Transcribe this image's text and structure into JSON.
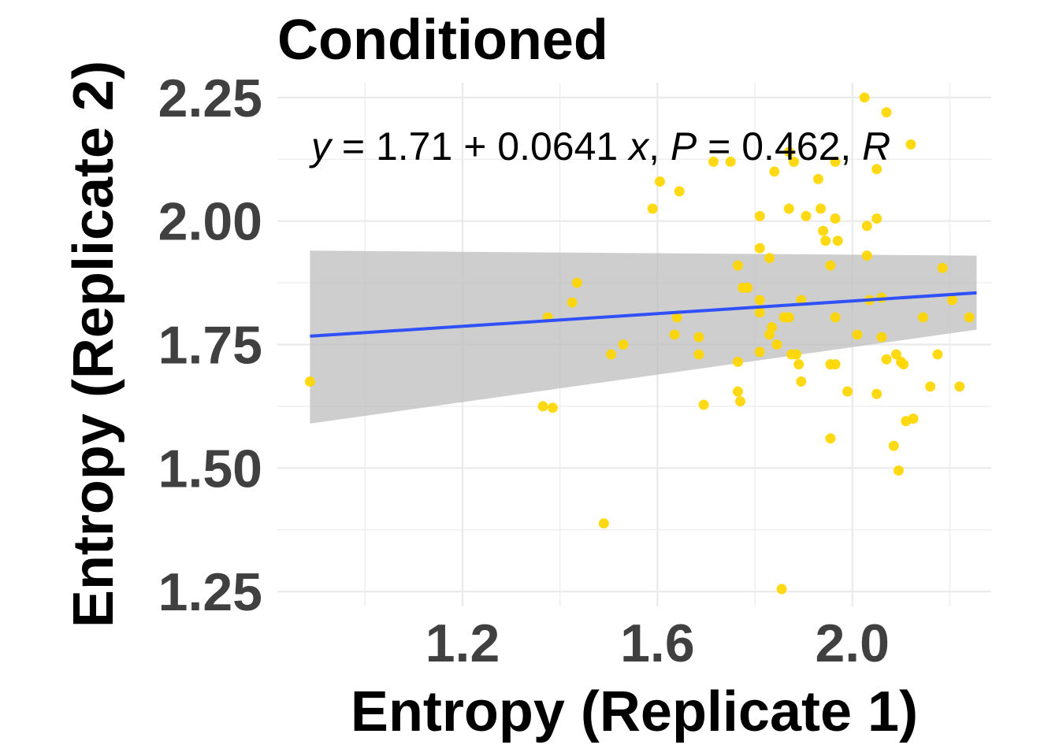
{
  "chart_data": {
    "type": "scatter",
    "title": "Conditioned",
    "xlabel": "Entropy (Replicate 1)",
    "ylabel": "Entropy (Replicate 2)",
    "xlim": [
      0.82,
      2.285
    ],
    "ylim": [
      1.22,
      2.28
    ],
    "x_ticks": [
      {
        "value": 1.2,
        "label": "1.2"
      },
      {
        "value": 1.6,
        "label": "1.6"
      },
      {
        "value": 2.0,
        "label": "2.0"
      }
    ],
    "y_ticks": [
      {
        "value": 1.25,
        "label": "1.25"
      },
      {
        "value": 1.5,
        "label": "1.50"
      },
      {
        "value": 1.75,
        "label": "1.75"
      },
      {
        "value": 2.0,
        "label": "2.00"
      },
      {
        "value": 2.25,
        "label": "2.25"
      }
    ],
    "grid": true,
    "colors": {
      "points": "#FFD700",
      "line": "#3050F8",
      "band": "#BEBEBE",
      "grid": "#EBEBEB"
    },
    "regression": {
      "intercept": 1.71,
      "slope": 0.0641,
      "equation_parts": [
        {
          "text": "y",
          "italic": true
        },
        {
          "text": " = 1.71 + 0.0641 ",
          "italic": false
        },
        {
          "text": "x",
          "italic": true
        },
        {
          "text": ", ",
          "italic": false
        },
        {
          "text": "P",
          "italic": true
        },
        {
          "text": " = 0.462, ",
          "italic": false
        },
        {
          "text": "R",
          "italic": true
        }
      ]
    },
    "confidence_band": {
      "x": [
        0.887,
        2.255
      ],
      "upper": [
        1.94,
        1.93
      ],
      "lower": [
        1.59,
        1.78
      ]
    },
    "points": [
      [
        0.887,
        1.675
      ],
      [
        1.365,
        1.625
      ],
      [
        1.375,
        1.805
      ],
      [
        1.385,
        1.622
      ],
      [
        1.425,
        1.835
      ],
      [
        1.435,
        1.875
      ],
      [
        1.49,
        1.388
      ],
      [
        1.505,
        1.73
      ],
      [
        1.53,
        1.75
      ],
      [
        1.59,
        2.025
      ],
      [
        1.605,
        2.08
      ],
      [
        1.635,
        1.77
      ],
      [
        1.64,
        1.805
      ],
      [
        1.645,
        2.06
      ],
      [
        1.685,
        1.765
      ],
      [
        1.685,
        1.73
      ],
      [
        1.695,
        1.628
      ],
      [
        1.715,
        2.12
      ],
      [
        1.75,
        2.12
      ],
      [
        1.765,
        1.715
      ],
      [
        1.765,
        1.655
      ],
      [
        1.765,
        1.91
      ],
      [
        1.77,
        1.635
      ],
      [
        1.775,
        1.865
      ],
      [
        1.785,
        1.865
      ],
      [
        1.81,
        1.945
      ],
      [
        1.81,
        1.84
      ],
      [
        1.81,
        1.815
      ],
      [
        1.81,
        1.735
      ],
      [
        1.81,
        2.01
      ],
      [
        1.83,
        1.77
      ],
      [
        1.83,
        1.925
      ],
      [
        1.835,
        1.785
      ],
      [
        1.84,
        2.1
      ],
      [
        1.845,
        1.75
      ],
      [
        1.855,
        1.255
      ],
      [
        1.86,
        1.805
      ],
      [
        1.87,
        2.14
      ],
      [
        1.87,
        2.025
      ],
      [
        1.87,
        1.805
      ],
      [
        1.875,
        1.73
      ],
      [
        1.88,
        2.12
      ],
      [
        1.885,
        1.73
      ],
      [
        1.89,
        1.71
      ],
      [
        1.895,
        1.84
      ],
      [
        1.895,
        1.675
      ],
      [
        1.905,
        2.01
      ],
      [
        1.93,
        2.085
      ],
      [
        1.935,
        2.025
      ],
      [
        1.94,
        1.98
      ],
      [
        1.945,
        1.96
      ],
      [
        1.955,
        1.91
      ],
      [
        1.955,
        1.71
      ],
      [
        1.955,
        1.56
      ],
      [
        1.965,
        1.71
      ],
      [
        1.965,
        2.12
      ],
      [
        1.965,
        1.805
      ],
      [
        1.965,
        2.005
      ],
      [
        1.97,
        1.96
      ],
      [
        1.99,
        1.655
      ],
      [
        2.01,
        1.77
      ],
      [
        2.025,
        2.25
      ],
      [
        2.03,
        1.99
      ],
      [
        2.03,
        1.93
      ],
      [
        2.035,
        1.84
      ],
      [
        2.05,
        2.105
      ],
      [
        2.05,
        2.005
      ],
      [
        2.05,
        1.65
      ],
      [
        2.06,
        1.845
      ],
      [
        2.06,
        1.765
      ],
      [
        2.07,
        2.22
      ],
      [
        2.07,
        1.72
      ],
      [
        2.085,
        1.545
      ],
      [
        2.09,
        1.73
      ],
      [
        2.095,
        1.495
      ],
      [
        2.1,
        1.715
      ],
      [
        2.105,
        1.71
      ],
      [
        2.11,
        1.595
      ],
      [
        2.12,
        2.155
      ],
      [
        2.125,
        1.6
      ],
      [
        2.145,
        1.805
      ],
      [
        2.16,
        1.665
      ],
      [
        2.175,
        1.73
      ],
      [
        2.185,
        1.905
      ],
      [
        2.205,
        1.84
      ],
      [
        2.22,
        1.665
      ],
      [
        2.24,
        1.805
      ]
    ]
  }
}
